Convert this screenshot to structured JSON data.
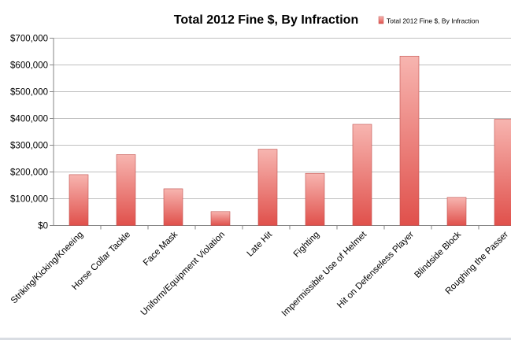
{
  "chart_data": {
    "type": "bar",
    "title": "Total 2012 Fine $, By Infraction",
    "legend": [
      "Total 2012 Fine $, By Infraction"
    ],
    "legend_position": "top-right",
    "xlabel": "",
    "ylabel": "",
    "ylim": [
      0,
      700000
    ],
    "yticks": [
      0,
      100000,
      200000,
      300000,
      400000,
      500000,
      600000,
      700000
    ],
    "ytick_labels": [
      "$0",
      "$100,000",
      "$200,000",
      "$300,000",
      "$400,000",
      "$500,000",
      "$600,000",
      "$700,000"
    ],
    "grid": true,
    "categories": [
      "Striking/Kicking/Kneeing",
      "Horse Collar Tackle",
      "Face Mask",
      "Uniform/Equipment Violation",
      "Late Hit",
      "Fighting",
      "Impermissible Use of Helmet",
      "Hit on Defenseless Player",
      "Blindside Block",
      "Roughing the Passer"
    ],
    "series": [
      {
        "name": "Total 2012 Fine $, By Infraction",
        "values": [
          190000,
          265000,
          137000,
          52000,
          285000,
          195000,
          378000,
          633000,
          105000,
          397000
        ]
      }
    ],
    "colors": {
      "bar_light": "#f7b5b0",
      "bar_dark": "#e0504b",
      "bar_stroke": "#c0504d",
      "grid": "#bfbfbf",
      "axis": "#868686",
      "text": "#000000"
    }
  }
}
